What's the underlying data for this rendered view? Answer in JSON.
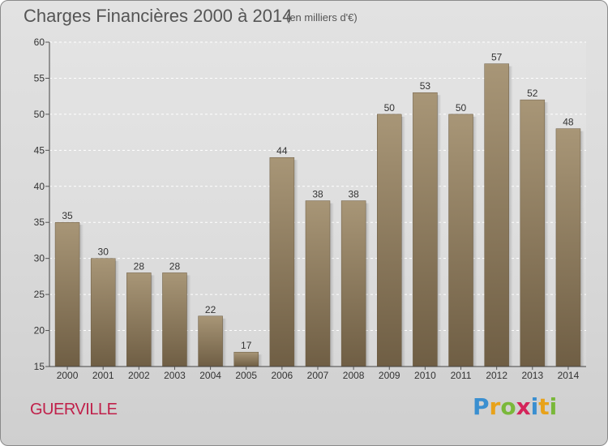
{
  "header": {
    "title": "Charges Financières 2000 à 2014",
    "unit": "(en milliers d'€)"
  },
  "commune": "GUERVILLE",
  "logo": {
    "text": "Proxiti",
    "letters": [
      {
        "char": "P",
        "color": "#3a8fd0"
      },
      {
        "char": "r",
        "color": "#e8a21a"
      },
      {
        "char": "o",
        "color": "#7ab83a"
      },
      {
        "char": "x",
        "color": "#d4245a"
      },
      {
        "char": "i",
        "color": "#3a8fd0"
      },
      {
        "char": "t",
        "color": "#e8a21a"
      },
      {
        "char": "i",
        "color": "#7ab83a"
      }
    ]
  },
  "chart_data": {
    "type": "bar",
    "title": "Charges Financières 2000 à 2014",
    "subtitle": "(en milliers d'€)",
    "categories": [
      "2000",
      "2001",
      "2002",
      "2003",
      "2004",
      "2005",
      "2006",
      "2007",
      "2008",
      "2009",
      "2010",
      "2011",
      "2012",
      "2013",
      "2014"
    ],
    "values": [
      35,
      30,
      28,
      28,
      22,
      17,
      44,
      38,
      38,
      50,
      53,
      50,
      57,
      52,
      48
    ],
    "ylim": [
      15,
      60
    ],
    "yticks": [
      15,
      20,
      25,
      30,
      35,
      40,
      45,
      50,
      55,
      60
    ],
    "grid": true,
    "bar_color_top": "#a89677",
    "bar_color_bottom": "#6f5e44"
  }
}
